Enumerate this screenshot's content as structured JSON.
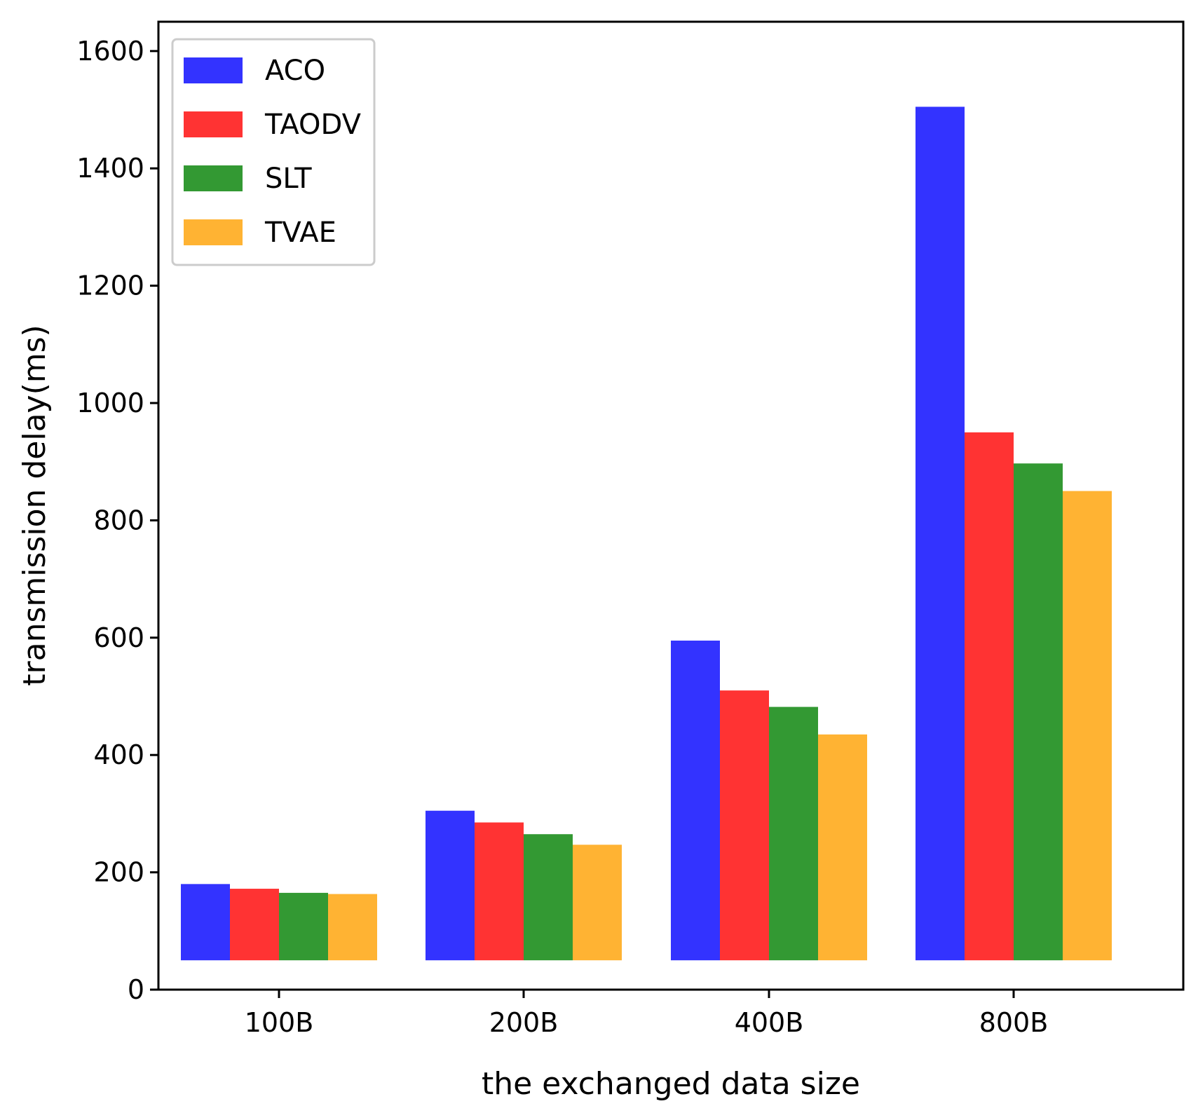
{
  "colors": {
    "ACO": "#3333ff",
    "TAODV": "#ff3333",
    "SLT": "#339933",
    "TVAE": "#ffb333",
    "axis": "#000000",
    "background": "#ffffff"
  },
  "chart_data": {
    "type": "bar",
    "title": "",
    "xlabel": "the exchanged data size",
    "ylabel": "transmission delay(ms)",
    "categories": [
      "100B",
      "200B",
      "400B",
      "800B"
    ],
    "series": [
      {
        "name": "ACO",
        "values": [
          180,
          305,
          595,
          1505
        ]
      },
      {
        "name": "TAODV",
        "values": [
          172,
          285,
          510,
          950
        ]
      },
      {
        "name": "SLT",
        "values": [
          165,
          265,
          482,
          897
        ]
      },
      {
        "name": "TVAE",
        "values": [
          163,
          247,
          435,
          850
        ]
      }
    ],
    "bar_base": 50,
    "ylim": [
      0,
      1650
    ],
    "yticks": [
      0,
      200,
      400,
      600,
      800,
      1000,
      1200,
      1400,
      1600
    ],
    "ytick_labels": [
      "0",
      "200",
      "400",
      "600",
      "800",
      "1000",
      "1200",
      "1400",
      "1600"
    ],
    "grid": false,
    "legend": {
      "position": "top-left",
      "entries": [
        "ACO",
        "TAODV",
        "SLT",
        "TVAE"
      ]
    }
  }
}
